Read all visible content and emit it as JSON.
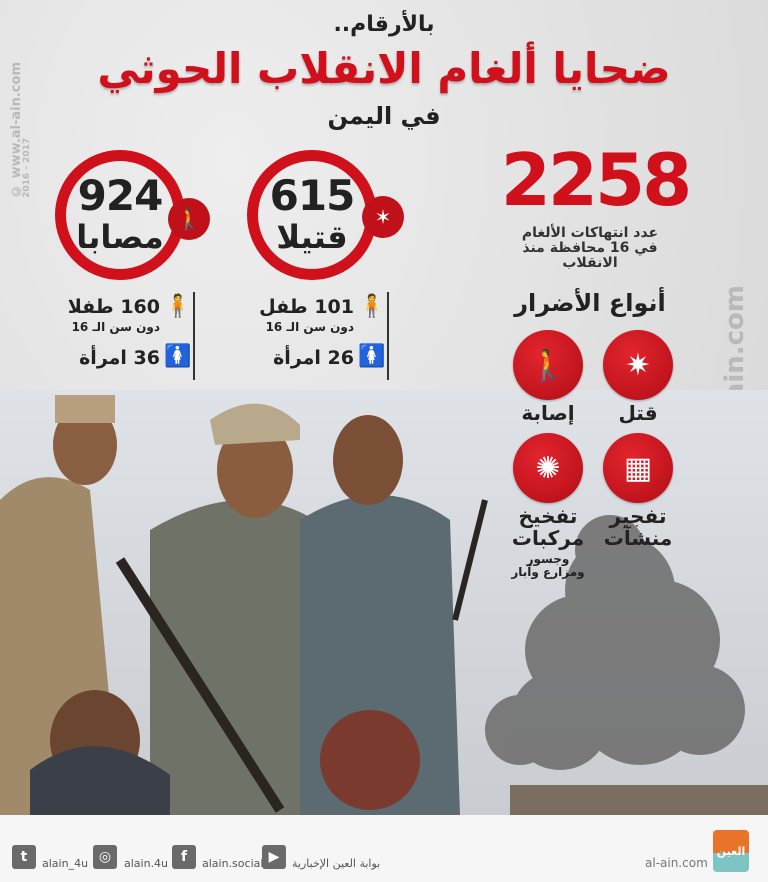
{
  "header": {
    "kicker": "بالأرقام..",
    "title": "ضحايا ألغام الانقلاب الحوثي",
    "subtitle": "في اليمن"
  },
  "killed": {
    "number": "615",
    "label": "قتيلا",
    "children": "101 طفل",
    "children_note": "دون سن الـ 16",
    "women": "26 امرأة"
  },
  "injured": {
    "number": "924",
    "label": "مصابا",
    "children": "160 طفلا",
    "children_note": "دون سن الـ 16",
    "women": "36 امرأة"
  },
  "violations": {
    "number": "2258",
    "description_lines": [
      "عدد انتهاكات الألغام",
      "في 16 محافظة منذ",
      "الانقلاب"
    ]
  },
  "damage_types": {
    "title": "أنواع الأضرار",
    "items": [
      {
        "label": "قتل",
        "icon": "falling-person-explosion-icon"
      },
      {
        "label": "إصابة",
        "icon": "injured-person-icon"
      },
      {
        "label": "تفجير منشآت",
        "icon": "building-explosion-icon"
      },
      {
        "label": "تفخيخ مركبات",
        "note": "وجسور ومزارع وآبار",
        "icon": "landmine-explosion-icon"
      }
    ]
  },
  "watermark": {
    "site": "www.al-ain.com",
    "years": "2016 - 2017"
  },
  "footer": {
    "twitter": "alain_4u",
    "instagram": "alain.4u",
    "facebook": "alain.social",
    "youtube": "بوابة العين الإخبارية",
    "site": "al-ain.com",
    "logo_text": "العين"
  },
  "colors": {
    "accent": "#d0101a",
    "background": "#e6e7e8",
    "footer": "#f6f6f6"
  }
}
